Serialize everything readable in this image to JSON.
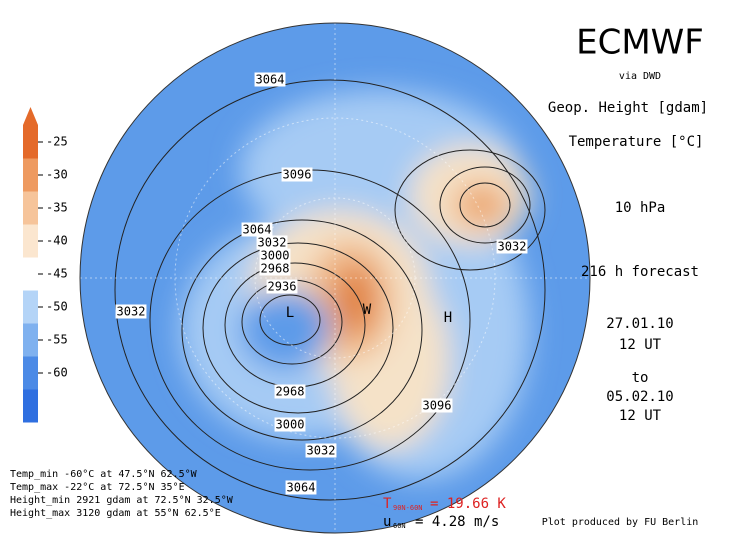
{
  "header": {
    "title": "ECMWF",
    "source": "via DWD",
    "field1": "Geop. Height [gdam]",
    "field2": "Temperature [°C]",
    "level": "10 hPa",
    "forecast": "216 h forecast",
    "init_date": "27.01.10",
    "init_time": "12 UT",
    "to": "to",
    "valid_date": "05.02.10",
    "valid_time": "12 UT"
  },
  "colorbar": {
    "ticks": [
      "-25",
      "-30",
      "-35",
      "-40",
      "-45",
      "-50",
      "-55",
      "-60"
    ]
  },
  "contour_labels": [
    "3064",
    "3096",
    "3064",
    "3032",
    "3000",
    "2968",
    "2936",
    "3032",
    "3032",
    "2968",
    "3000",
    "3032",
    "3064",
    "3096"
  ],
  "map_markers": [
    "L",
    "H",
    "W"
  ],
  "stats": {
    "t_symbol": "T",
    "t_sub": "90N-60N",
    "t_value": "= 19.66 K",
    "u_symbol": "u",
    "u_sub": "60N",
    "u_value": "= 4.28 m/s"
  },
  "extremes": [
    "Temp_min -60°C at 47.5°N 62.5°W",
    "Temp_max -22°C at 72.5°N 35°E",
    "Height_min 2921 gdam at 72.5°N 32.5°W",
    "Height_max 3120 gdam at 55°N 62.5°E"
  ],
  "credit": "Plot produced by FU Berlin"
}
